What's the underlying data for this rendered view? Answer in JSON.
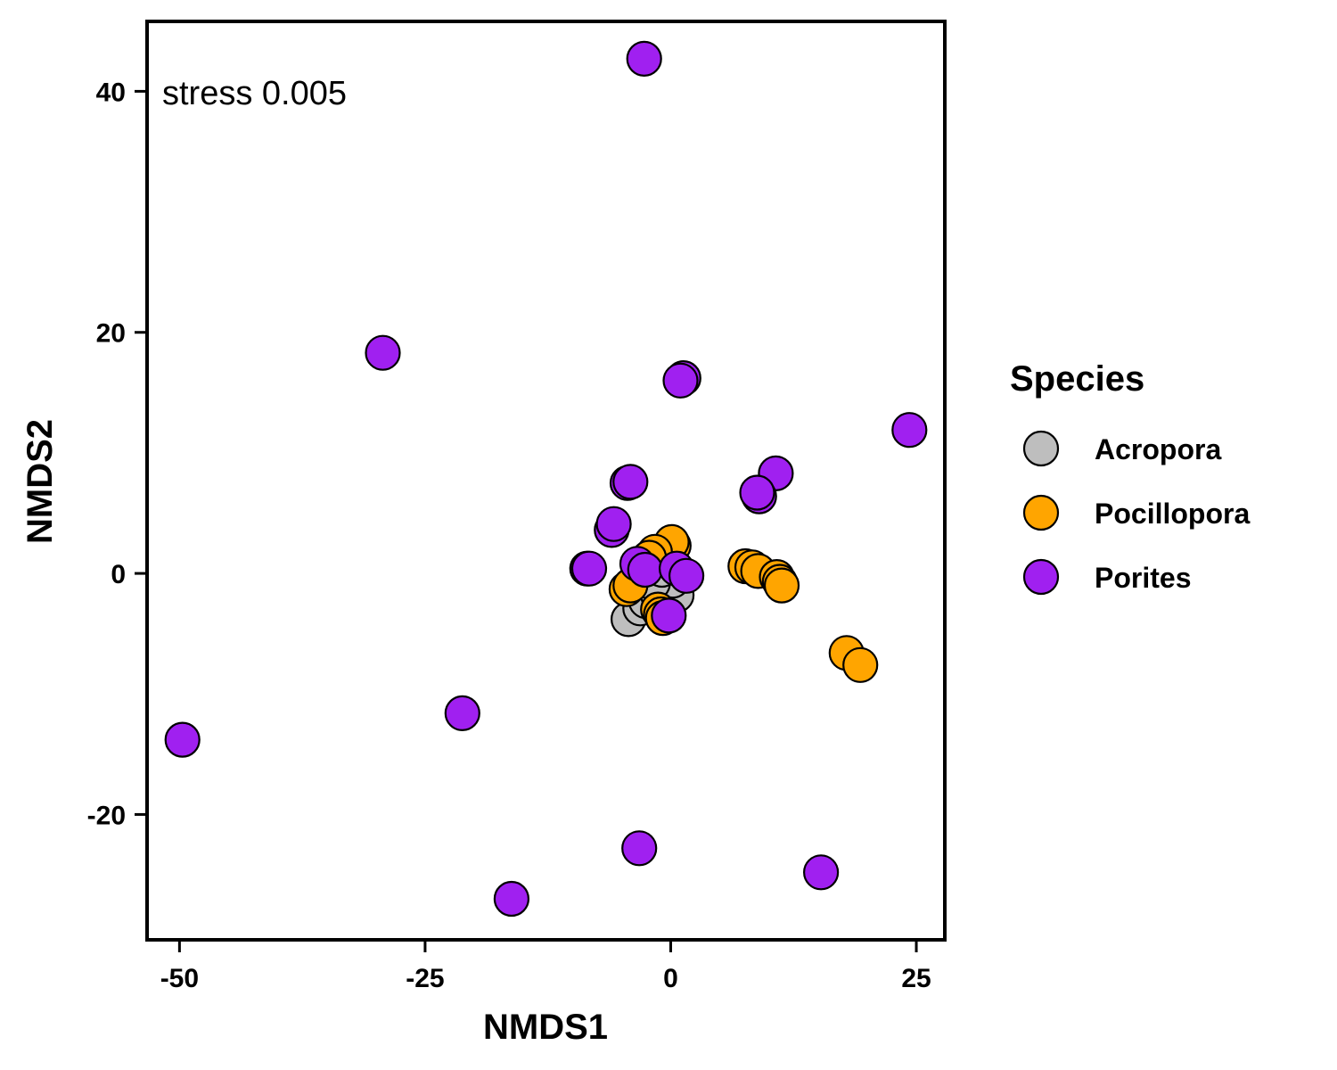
{
  "chart_data": {
    "type": "scatter",
    "xlabel": "NMDS1",
    "ylabel": "NMDS2",
    "xlim": [
      -53.3,
      27.9
    ],
    "ylim": [
      -30.4,
      45.8
    ],
    "x_ticks": [
      -50,
      -25,
      0,
      25
    ],
    "y_ticks": [
      -20,
      0,
      20,
      40
    ],
    "x_tick_labels": [
      "-50",
      "-25",
      "0",
      "25"
    ],
    "y_tick_labels": [
      "-20",
      "0",
      "20",
      "40"
    ],
    "grid": false,
    "annotation": "stress 0.005",
    "legend": {
      "title": "Species",
      "position": "right"
    },
    "series": [
      {
        "name": "Acropora",
        "color": "#bebebe",
        "points": [
          [
            -4.3,
            -3.8
          ],
          [
            -3.1,
            -2.9
          ],
          [
            -2.5,
            -2.3
          ],
          [
            -1.3,
            -1.8
          ],
          [
            -0.6,
            -1.3
          ],
          [
            0.6,
            -1.8
          ],
          [
            0.2,
            -0.6
          ],
          [
            -1.8,
            -0.8
          ],
          [
            -0.9,
            0.3
          ]
        ]
      },
      {
        "name": "Pocillopora",
        "color": "#ffa500",
        "points": [
          [
            0.3,
            2.3
          ],
          [
            0.1,
            2.6
          ],
          [
            -1.6,
            1.8
          ],
          [
            -2.2,
            1.3
          ],
          [
            -4.5,
            -1.3
          ],
          [
            -4.1,
            -1.0
          ],
          [
            -1.3,
            -3.0
          ],
          [
            -1.0,
            -3.4
          ],
          [
            -0.8,
            -3.7
          ],
          [
            7.6,
            0.6
          ],
          [
            8.3,
            0.5
          ],
          [
            8.9,
            0.2
          ],
          [
            10.8,
            -0.3
          ],
          [
            11.1,
            -0.7
          ],
          [
            11.3,
            -1.0
          ],
          [
            17.9,
            -6.6
          ],
          [
            19.3,
            -7.6
          ]
        ]
      },
      {
        "name": "Porites",
        "color": "#a020f0",
        "points": [
          [
            -2.7,
            42.7
          ],
          [
            -29.3,
            18.3
          ],
          [
            1.3,
            16.2
          ],
          [
            1.0,
            16.0
          ],
          [
            24.3,
            11.9
          ],
          [
            10.7,
            8.3
          ],
          [
            9.0,
            6.4
          ],
          [
            8.8,
            6.7
          ],
          [
            -4.4,
            7.5
          ],
          [
            -4.1,
            7.6
          ],
          [
            -6.0,
            3.6
          ],
          [
            -5.8,
            4.1
          ],
          [
            -8.5,
            0.4
          ],
          [
            -8.3,
            0.4
          ],
          [
            -3.4,
            0.8
          ],
          [
            -2.6,
            0.3
          ],
          [
            0.6,
            0.4
          ],
          [
            1.6,
            -0.2
          ],
          [
            -0.2,
            -3.5
          ],
          [
            -21.2,
            -11.6
          ],
          [
            -49.7,
            -13.8
          ],
          [
            -3.2,
            -22.8
          ],
          [
            15.3,
            -24.8
          ],
          [
            -16.2,
            -27.0
          ]
        ]
      }
    ]
  }
}
